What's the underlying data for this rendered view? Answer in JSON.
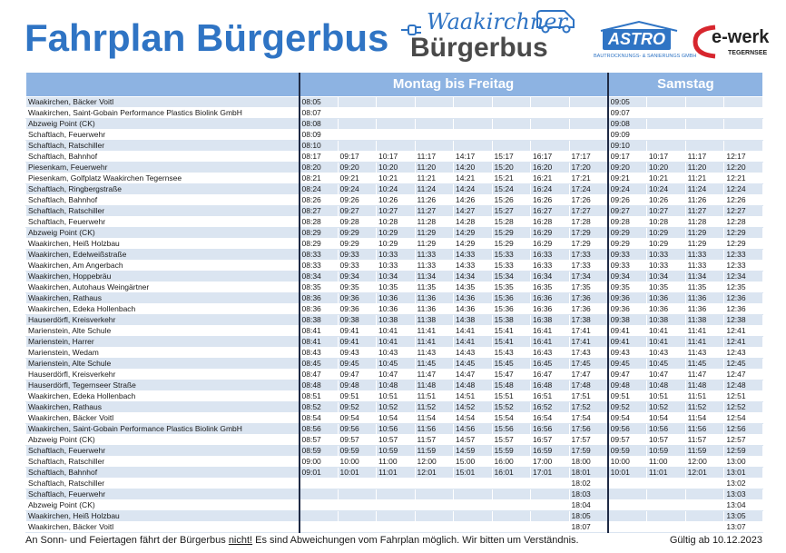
{
  "title": "Fahrplan Bürgerbus",
  "brand": {
    "script": "Waakirchner",
    "name": "Bürgerbus"
  },
  "sponsor1": {
    "name": "ASTRO",
    "sub": "BAUTROCKNUNGS- & SANIERUNGS GMBH"
  },
  "sponsor2": {
    "name": "e-werk",
    "sub": "TEGERNSEE"
  },
  "headers": {
    "weekday": "Montag bis Freitag",
    "saturday": "Samstag"
  },
  "colors": {
    "title": "#2f74c4",
    "header_bg": "#8db3e2",
    "row_alt": "#dbe5f1",
    "ewerk_red": "#d7262e"
  },
  "rows": [
    [
      "Waakirchen, Bäcker Voitl",
      "08:05",
      "",
      "",
      "",
      "",
      "",
      "",
      "",
      "09:05",
      "",
      "",
      ""
    ],
    [
      "Waakirchen, Saint-Gobain Performance Plastics Biolink GmbH",
      "08:07",
      "",
      "",
      "",
      "",
      "",
      "",
      "",
      "09:07",
      "",
      "",
      ""
    ],
    [
      "Abzweig Point (CK)",
      "08:08",
      "",
      "",
      "",
      "",
      "",
      "",
      "",
      "09:08",
      "",
      "",
      ""
    ],
    [
      "Schaftlach, Feuerwehr",
      "08:09",
      "",
      "",
      "",
      "",
      "",
      "",
      "",
      "09:09",
      "",
      "",
      ""
    ],
    [
      "Schaftlach, Ratschiller",
      "08:10",
      "",
      "",
      "",
      "",
      "",
      "",
      "",
      "09:10",
      "",
      "",
      ""
    ],
    [
      "Schaftlach, Bahnhof",
      "08:17",
      "09:17",
      "10:17",
      "11:17",
      "14:17",
      "15:17",
      "16:17",
      "17:17",
      "09:17",
      "10:17",
      "11:17",
      "12:17"
    ],
    [
      "Piesenkam, Feuerwehr",
      "08:20",
      "09:20",
      "10:20",
      "11:20",
      "14:20",
      "15:20",
      "16:20",
      "17:20",
      "09:20",
      "10:20",
      "11:20",
      "12:20"
    ],
    [
      "Piesenkam, Golfplatz Waakirchen Tegernsee",
      "08:21",
      "09:21",
      "10:21",
      "11:21",
      "14:21",
      "15:21",
      "16:21",
      "17:21",
      "09:21",
      "10:21",
      "11:21",
      "12:21"
    ],
    [
      "Schaftlach, Ringbergstraße",
      "08:24",
      "09:24",
      "10:24",
      "11:24",
      "14:24",
      "15:24",
      "16:24",
      "17:24",
      "09:24",
      "10:24",
      "11:24",
      "12:24"
    ],
    [
      "Schaftlach, Bahnhof",
      "08:26",
      "09:26",
      "10:26",
      "11:26",
      "14:26",
      "15:26",
      "16:26",
      "17:26",
      "09:26",
      "10:26",
      "11:26",
      "12:26"
    ],
    [
      "Schaftlach, Ratschiller",
      "08:27",
      "09:27",
      "10:27",
      "11:27",
      "14:27",
      "15:27",
      "16:27",
      "17:27",
      "09:27",
      "10:27",
      "11:27",
      "12:27"
    ],
    [
      "Schaftlach, Feuerwehr",
      "08:28",
      "09:28",
      "10:28",
      "11:28",
      "14:28",
      "15:28",
      "16:28",
      "17:28",
      "09:28",
      "10:28",
      "11:28",
      "12:28"
    ],
    [
      "Abzweig Point (CK)",
      "08:29",
      "09:29",
      "10:29",
      "11:29",
      "14:29",
      "15:29",
      "16:29",
      "17:29",
      "09:29",
      "10:29",
      "11:29",
      "12:29"
    ],
    [
      "Waakirchen, Heiß Holzbau",
      "08:29",
      "09:29",
      "10:29",
      "11:29",
      "14:29",
      "15:29",
      "16:29",
      "17:29",
      "09:29",
      "10:29",
      "11:29",
      "12:29"
    ],
    [
      "Waakirchen, Edelweißstraße",
      "08:33",
      "09:33",
      "10:33",
      "11:33",
      "14:33",
      "15:33",
      "16:33",
      "17:33",
      "09:33",
      "10:33",
      "11:33",
      "12:33"
    ],
    [
      "Waakirchen, Am Angerbach",
      "08:33",
      "09:33",
      "10:33",
      "11:33",
      "14:33",
      "15:33",
      "16:33",
      "17:33",
      "09:33",
      "10:33",
      "11:33",
      "12:33"
    ],
    [
      "Waakirchen, Hoppebräu",
      "08:34",
      "09:34",
      "10:34",
      "11:34",
      "14:34",
      "15:34",
      "16:34",
      "17:34",
      "09:34",
      "10:34",
      "11:34",
      "12:34"
    ],
    [
      "Waakirchen, Autohaus Weingärtner",
      "08:35",
      "09:35",
      "10:35",
      "11:35",
      "14:35",
      "15:35",
      "16:35",
      "17:35",
      "09:35",
      "10:35",
      "11:35",
      "12:35"
    ],
    [
      "Waakirchen, Rathaus",
      "08:36",
      "09:36",
      "10:36",
      "11:36",
      "14:36",
      "15:36",
      "16:36",
      "17:36",
      "09:36",
      "10:36",
      "11:36",
      "12:36"
    ],
    [
      "Waakirchen, Edeka Hollenbach",
      "08:36",
      "09:36",
      "10:36",
      "11:36",
      "14:36",
      "15:36",
      "16:36",
      "17:36",
      "09:36",
      "10:36",
      "11:36",
      "12:36"
    ],
    [
      "Hauserdörfl, Kreisverkehr",
      "08:38",
      "09:38",
      "10:38",
      "11:38",
      "14:38",
      "15:38",
      "16:38",
      "17:38",
      "09:38",
      "10:38",
      "11:38",
      "12:38"
    ],
    [
      "Marienstein, Alte Schule",
      "08:41",
      "09:41",
      "10:41",
      "11:41",
      "14:41",
      "15:41",
      "16:41",
      "17:41",
      "09:41",
      "10:41",
      "11:41",
      "12:41"
    ],
    [
      "Marienstein, Harrer",
      "08:41",
      "09:41",
      "10:41",
      "11:41",
      "14:41",
      "15:41",
      "16:41",
      "17:41",
      "09:41",
      "10:41",
      "11:41",
      "12:41"
    ],
    [
      "Marienstein, Wedam",
      "08:43",
      "09:43",
      "10:43",
      "11:43",
      "14:43",
      "15:43",
      "16:43",
      "17:43",
      "09:43",
      "10:43",
      "11:43",
      "12:43"
    ],
    [
      "Marienstein, Alte Schule",
      "08:45",
      "09:45",
      "10:45",
      "11:45",
      "14:45",
      "15:45",
      "16:45",
      "17:45",
      "09:45",
      "10:45",
      "11:45",
      "12:45"
    ],
    [
      "Hauserdörfl, Kreisverkehr",
      "08:47",
      "09:47",
      "10:47",
      "11:47",
      "14:47",
      "15:47",
      "16:47",
      "17:47",
      "09:47",
      "10:47",
      "11:47",
      "12:47"
    ],
    [
      "Hauserdörfl, Tegernseer Straße",
      "08:48",
      "09:48",
      "10:48",
      "11:48",
      "14:48",
      "15:48",
      "16:48",
      "17:48",
      "09:48",
      "10:48",
      "11:48",
      "12:48"
    ],
    [
      "Waakirchen, Edeka Hollenbach",
      "08:51",
      "09:51",
      "10:51",
      "11:51",
      "14:51",
      "15:51",
      "16:51",
      "17:51",
      "09:51",
      "10:51",
      "11:51",
      "12:51"
    ],
    [
      "Waakirchen, Rathaus",
      "08:52",
      "09:52",
      "10:52",
      "11:52",
      "14:52",
      "15:52",
      "16:52",
      "17:52",
      "09:52",
      "10:52",
      "11:52",
      "12:52"
    ],
    [
      "Waakirchen, Bäcker Voitl",
      "08:54",
      "09:54",
      "10:54",
      "11:54",
      "14:54",
      "15:54",
      "16:54",
      "17:54",
      "09:54",
      "10:54",
      "11:54",
      "12:54"
    ],
    [
      "Waakirchen, Saint-Gobain Performance Plastics Biolink GmbH",
      "08:56",
      "09:56",
      "10:56",
      "11:56",
      "14:56",
      "15:56",
      "16:56",
      "17:56",
      "09:56",
      "10:56",
      "11:56",
      "12:56"
    ],
    [
      "Abzweig Point (CK)",
      "08:57",
      "09:57",
      "10:57",
      "11:57",
      "14:57",
      "15:57",
      "16:57",
      "17:57",
      "09:57",
      "10:57",
      "11:57",
      "12:57"
    ],
    [
      "Schaftlach, Feuerwehr",
      "08:59",
      "09:59",
      "10:59",
      "11:59",
      "14:59",
      "15:59",
      "16:59",
      "17:59",
      "09:59",
      "10:59",
      "11:59",
      "12:59"
    ],
    [
      "Schaftlach, Ratschiller",
      "09:00",
      "10:00",
      "11:00",
      "12:00",
      "15:00",
      "16:00",
      "17:00",
      "18:00",
      "10:00",
      "11:00",
      "12:00",
      "13:00"
    ],
    [
      "Schaftlach, Bahnhof",
      "09:01",
      "10:01",
      "11:01",
      "12:01",
      "15:01",
      "16:01",
      "17:01",
      "18:01",
      "10:01",
      "11:01",
      "12:01",
      "13:01"
    ],
    [
      "Schaftlach, Ratschiller",
      "",
      "",
      "",
      "",
      "",
      "",
      "",
      "18:02",
      "",
      "",
      "",
      "13:02"
    ],
    [
      "Schaftlach, Feuerwehr",
      "",
      "",
      "",
      "",
      "",
      "",
      "",
      "18:03",
      "",
      "",
      "",
      "13:03"
    ],
    [
      "Abzweig Point (CK)",
      "",
      "",
      "",
      "",
      "",
      "",
      "",
      "18:04",
      "",
      "",
      "",
      "13:04"
    ],
    [
      "Waakirchen, Heiß Holzbau",
      "",
      "",
      "",
      "",
      "",
      "",
      "",
      "18:05",
      "",
      "",
      "",
      "13:05"
    ],
    [
      "Waakirchen, Bäcker Voitl",
      "",
      "",
      "",
      "",
      "",
      "",
      "",
      "18:07",
      "",
      "",
      "",
      "13:07"
    ]
  ],
  "footer": {
    "note_before": "An Sonn- und Feiertagen fährt der Bürgerbus ",
    "note_emph": "nicht!",
    "note_after": " Es sind Abweichungen vom Fahrplan möglich. Wir bitten um Verständnis.",
    "valid": "Gültig ab 10.12.2023"
  }
}
